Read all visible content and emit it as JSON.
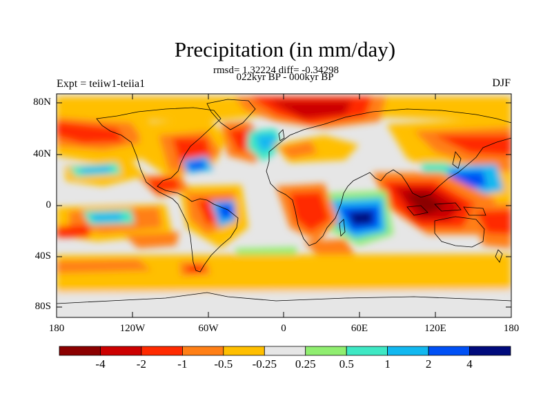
{
  "title": "Precipitation (in mm/day)",
  "stats": "rmsd= 1.32224  diff= -0.34298",
  "period": "022kyr BP - 000kyr BP",
  "experiment": "Expt = teiiw1-teiia1",
  "season": "DJF",
  "map": {
    "projection": "cylindrical equidistant",
    "lon_range": [
      -180,
      180
    ],
    "lat_range": [
      -90,
      90
    ],
    "lat_ticks": [
      "80N",
      "40N",
      "0",
      "40S",
      "80S"
    ],
    "lon_ticks": [
      "180",
      "120W",
      "60W",
      "0",
      "60E",
      "120E",
      "180"
    ]
  },
  "colorbar": {
    "colors": [
      "#8b0000",
      "#cc0000",
      "#ff2a00",
      "#ff7f16",
      "#ffbf00",
      "#e6e6e6",
      "#90ee70",
      "#3ee8c4",
      "#12b8f0",
      "#0050f5",
      "#000a7c"
    ],
    "labels": [
      "-4",
      "-2",
      "-1",
      "-0.5",
      "-0.25",
      "0.25",
      "0.5",
      "1",
      "2",
      "4"
    ]
  }
}
